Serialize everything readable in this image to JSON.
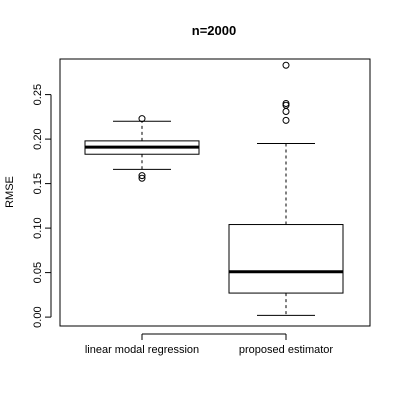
{
  "chart_data": {
    "type": "box",
    "title": "n=2000",
    "xlabel": "",
    "ylabel": "RMSE",
    "ylim": [
      -0.01,
      0.29
    ],
    "yticks": [
      0.0,
      0.05,
      0.1,
      0.15,
      0.2,
      0.25
    ],
    "ytick_labels": [
      "0.00",
      "0.05",
      "0.10",
      "0.15",
      "0.20",
      "0.25"
    ],
    "categories": [
      "linear modal regression",
      "proposed estimator"
    ],
    "boxes": [
      {
        "name": "linear modal regression",
        "whisker_low": 0.166,
        "q1": 0.183,
        "median": 0.191,
        "q3": 0.198,
        "whisker_high": 0.22,
        "outliers": [
          0.223,
          0.159,
          0.156
        ]
      },
      {
        "name": "proposed estimator",
        "whisker_low": 0.002,
        "q1": 0.027,
        "median": 0.051,
        "q3": 0.104,
        "whisker_high": 0.195,
        "outliers": [
          0.283,
          0.24,
          0.238,
          0.231,
          0.221
        ]
      }
    ],
    "grid": false,
    "legend": "none"
  }
}
